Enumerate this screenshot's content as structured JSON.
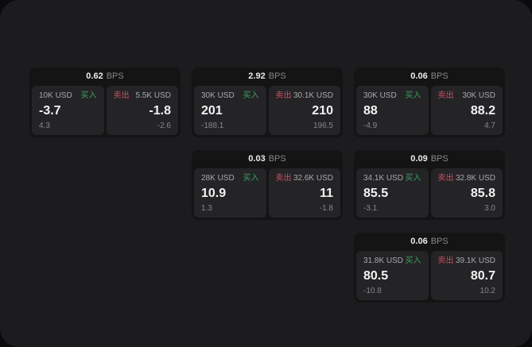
{
  "window": {
    "bps_unit": "BPS",
    "buy_label": "买入",
    "sell_label": "卖出"
  },
  "colors": {
    "outer_bg": "#0b0b0d",
    "surface_bg": "#1c1c1e",
    "card_bg": "#141415",
    "tile_bg": "#242427",
    "buy_green": "#3aa05e",
    "sell_red": "#c9505f",
    "value_white": "#f2f2f2",
    "label_gray": "#a9a9ab",
    "muted_gray": "#87878a"
  },
  "cards": [
    {
      "bps_value": "0.62",
      "buy": {
        "amount": "10K USD",
        "price": "-3.7",
        "delta": "4.3"
      },
      "sell": {
        "amount": "5.5K USD",
        "price": "-1.8",
        "delta": "-2.6"
      }
    },
    {
      "bps_value": "2.92",
      "buy": {
        "amount": "30K USD",
        "price": "201",
        "delta": "-188.1"
      },
      "sell": {
        "amount": "30.1K USD",
        "price": "210",
        "delta": "196.5"
      }
    },
    {
      "bps_value": "0.06",
      "buy": {
        "amount": "30K USD",
        "price": "88",
        "delta": "-4.9"
      },
      "sell": {
        "amount": "30K USD",
        "price": "88.2",
        "delta": "4.7"
      }
    },
    {
      "bps_value": "0.03",
      "buy": {
        "amount": "28K USD",
        "price": "10.9",
        "delta": "1.3"
      },
      "sell": {
        "amount": "32.6K USD",
        "price": "11",
        "delta": "-1.8"
      }
    },
    {
      "bps_value": "0.09",
      "buy": {
        "amount": "34.1K USD",
        "price": "85.5",
        "delta": "-3.1"
      },
      "sell": {
        "amount": "32.8K USD",
        "price": "85.8",
        "delta": "3.0"
      }
    },
    {
      "bps_value": "0.06",
      "buy": {
        "amount": "31.8K USD",
        "price": "80.5",
        "delta": "-10.8"
      },
      "sell": {
        "amount": "39.1K USD",
        "price": "80.7",
        "delta": "10.2"
      }
    }
  ]
}
